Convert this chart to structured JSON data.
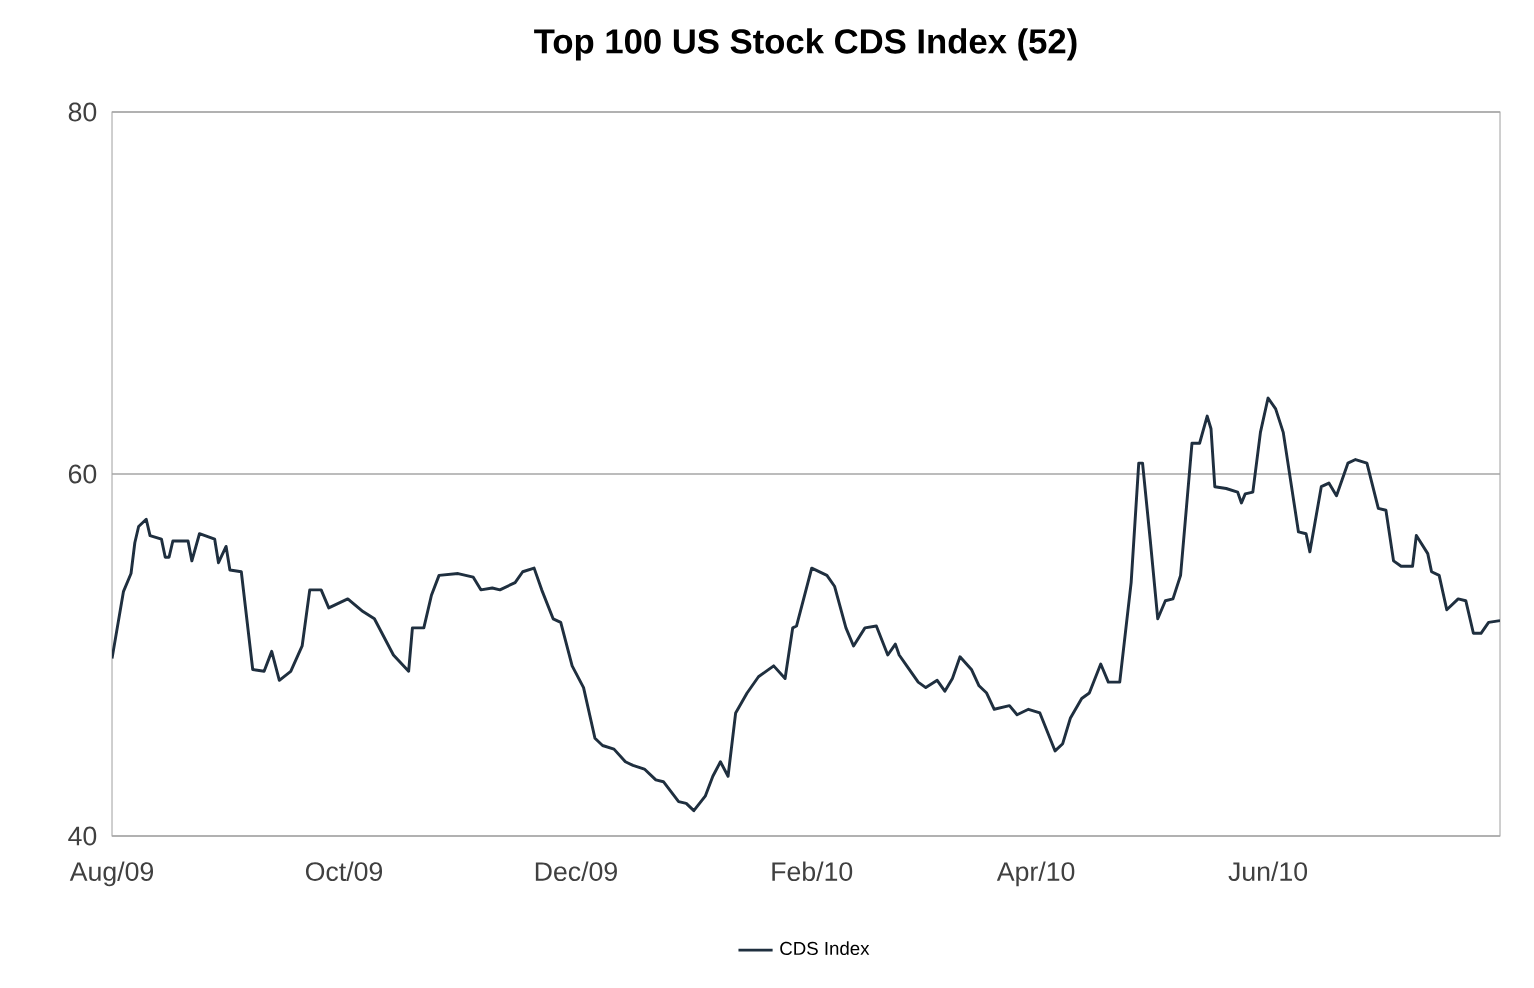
{
  "chart_data": {
    "type": "line",
    "title": "Top 100 US Stock CDS Index (52)",
    "xlim": [
      "2009-08-01",
      "2010-08-01"
    ],
    "ylim": [
      40,
      80
    ],
    "yticks": [
      40,
      60,
      80
    ],
    "xticks": [
      {
        "value": "2009-08-01",
        "label": "Aug/09"
      },
      {
        "value": "2009-10-01",
        "label": "Oct/09"
      },
      {
        "value": "2009-12-01",
        "label": "Dec/09"
      },
      {
        "value": "2010-02-01",
        "label": "Feb/10"
      },
      {
        "value": "2010-04-01",
        "label": "Apr/10"
      },
      {
        "value": "2010-06-01",
        "label": "Jun/10"
      }
    ],
    "grid": "y",
    "legend": "bottom",
    "marker": "none",
    "line_style": "solid",
    "series": [
      {
        "name": "CDS Index",
        "color": "#1f2f3f",
        "x": [
          "2009-08-01",
          "2009-08-04",
          "2009-08-06",
          "2009-08-07",
          "2009-08-08",
          "2009-08-10",
          "2009-08-11",
          "2009-08-14",
          "2009-08-15",
          "2009-08-16",
          "2009-08-17",
          "2009-08-21",
          "2009-08-22",
          "2009-08-24",
          "2009-08-28",
          "2009-08-29",
          "2009-08-31",
          "2009-09-01",
          "2009-09-04",
          "2009-09-07",
          "2009-09-10",
          "2009-09-12",
          "2009-09-14",
          "2009-09-17",
          "2009-09-20",
          "2009-09-22",
          "2009-09-25",
          "2009-09-27",
          "2009-10-02",
          "2009-10-06",
          "2009-10-09",
          "2009-10-14",
          "2009-10-18",
          "2009-10-19",
          "2009-10-22",
          "2009-10-24",
          "2009-10-26",
          "2009-10-31",
          "2009-11-04",
          "2009-11-06",
          "2009-11-09",
          "2009-11-11",
          "2009-11-15",
          "2009-11-17",
          "2009-11-20",
          "2009-11-22",
          "2009-11-25",
          "2009-11-27",
          "2009-11-30",
          "2009-12-03",
          "2009-12-06",
          "2009-12-08",
          "2009-12-11",
          "2009-12-14",
          "2009-12-16",
          "2009-12-19",
          "2009-12-22",
          "2009-12-24",
          "2009-12-28",
          "2009-12-30",
          "2010-01-01",
          "2010-01-04",
          "2010-01-06",
          "2010-01-08",
          "2010-01-10",
          "2010-01-12",
          "2010-01-15",
          "2010-01-18",
          "2010-01-22",
          "2010-01-25",
          "2010-01-27",
          "2010-01-28",
          "2010-02-01",
          "2010-02-05",
          "2010-02-07",
          "2010-02-10",
          "2010-02-12",
          "2010-02-15",
          "2010-02-18",
          "2010-02-21",
          "2010-02-23",
          "2010-02-24",
          "2010-02-26",
          "2010-03-01",
          "2010-03-03",
          "2010-03-06",
          "2010-03-08",
          "2010-03-10",
          "2010-03-12",
          "2010-03-15",
          "2010-03-17",
          "2010-03-19",
          "2010-03-21",
          "2010-03-25",
          "2010-03-27",
          "2010-03-30",
          "2010-04-02",
          "2010-04-06",
          "2010-04-08",
          "2010-04-10",
          "2010-04-13",
          "2010-04-15",
          "2010-04-18",
          "2010-04-20",
          "2010-04-23",
          "2010-04-26",
          "2010-04-28",
          "2010-04-29",
          "2010-05-01",
          "2010-05-03",
          "2010-05-05",
          "2010-05-07",
          "2010-05-09",
          "2010-05-12",
          "2010-05-14",
          "2010-05-16",
          "2010-05-17",
          "2010-05-18",
          "2010-05-21",
          "2010-05-24",
          "2010-05-25",
          "2010-05-26",
          "2010-05-28",
          "2010-05-30",
          "2010-06-01",
          "2010-06-03",
          "2010-06-05",
          "2010-06-09",
          "2010-06-11",
          "2010-06-12",
          "2010-06-15",
          "2010-06-17",
          "2010-06-19",
          "2010-06-22",
          "2010-06-24",
          "2010-06-27",
          "2010-06-30",
          "2010-07-02",
          "2010-07-04",
          "2010-07-06",
          "2010-07-09",
          "2010-07-10",
          "2010-07-13",
          "2010-07-14",
          "2010-07-16",
          "2010-07-18",
          "2010-07-21",
          "2010-07-23",
          "2010-07-25",
          "2010-07-27",
          "2010-07-29",
          "2010-08-01"
        ],
        "values": [
          49.8,
          53.5,
          54.5,
          56.2,
          57.1,
          57.5,
          56.6,
          56.4,
          55.4,
          55.4,
          56.3,
          56.3,
          55.2,
          56.7,
          56.4,
          55.1,
          56.0,
          54.7,
          54.6,
          49.2,
          49.1,
          50.2,
          48.6,
          49.1,
          50.5,
          53.6,
          53.6,
          52.6,
          53.1,
          52.4,
          52.0,
          50.0,
          49.1,
          51.5,
          51.5,
          53.3,
          54.4,
          54.5,
          54.3,
          53.6,
          53.7,
          53.6,
          54.0,
          54.6,
          54.8,
          53.6,
          52.0,
          51.8,
          49.4,
          48.2,
          45.4,
          45.0,
          44.8,
          44.1,
          43.9,
          43.7,
          43.1,
          43.0,
          41.9,
          41.8,
          41.4,
          42.2,
          43.3,
          44.1,
          43.3,
          46.8,
          47.9,
          48.8,
          49.4,
          48.7,
          51.5,
          51.6,
          54.8,
          54.4,
          53.8,
          51.5,
          50.5,
          51.5,
          51.6,
          50.0,
          50.6,
          50.0,
          49.4,
          48.5,
          48.2,
          48.6,
          48.0,
          48.7,
          49.9,
          49.2,
          48.3,
          47.9,
          47.0,
          47.2,
          46.7,
          47.0,
          46.8,
          44.7,
          45.1,
          46.5,
          47.6,
          47.9,
          49.5,
          48.5,
          48.5,
          54.0,
          60.6,
          60.6,
          56.4,
          52.0,
          53.0,
          53.1,
          54.4,
          61.7,
          61.7,
          63.2,
          62.5,
          59.3,
          59.2,
          59.0,
          58.4,
          58.9,
          59.0,
          62.3,
          64.2,
          63.6,
          62.3,
          56.8,
          56.7,
          55.7,
          59.3,
          59.5,
          58.8,
          60.6,
          60.8,
          60.6,
          58.1,
          58.0,
          55.2,
          54.9,
          54.9,
          56.6,
          55.6,
          54.6,
          54.4,
          52.5,
          53.1,
          53.0,
          51.2,
          51.2,
          51.8,
          51.9
        ]
      }
    ]
  }
}
